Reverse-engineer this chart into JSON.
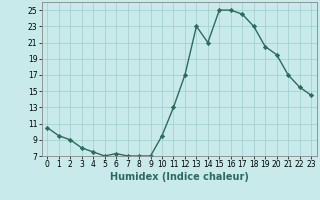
{
  "x": [
    0,
    1,
    2,
    3,
    4,
    5,
    6,
    7,
    8,
    9,
    10,
    11,
    12,
    13,
    14,
    15,
    16,
    17,
    18,
    19,
    20,
    21,
    22,
    23
  ],
  "y": [
    10.5,
    9.5,
    9.0,
    8.0,
    7.5,
    7.0,
    7.3,
    7.0,
    7.0,
    7.0,
    9.5,
    13.0,
    17.0,
    23.0,
    21.0,
    25.0,
    25.0,
    24.5,
    23.0,
    20.5,
    19.5,
    17.0,
    15.5,
    14.5
  ],
  "line_color": "#2d6b5e",
  "marker": "D",
  "marker_size": 2.2,
  "linewidth": 1.0,
  "xlabel": "Humidex (Indice chaleur)",
  "bg_color": "#c8eaea",
  "grid_color": "#a0cccc",
  "xlim": [
    -0.5,
    23.5
  ],
  "ylim": [
    7,
    26
  ],
  "yticks": [
    7,
    9,
    11,
    13,
    15,
    17,
    19,
    21,
    23,
    25
  ],
  "xticks": [
    0,
    1,
    2,
    3,
    4,
    5,
    6,
    7,
    8,
    9,
    10,
    11,
    12,
    13,
    14,
    15,
    16,
    17,
    18,
    19,
    20,
    21,
    22,
    23
  ],
  "tick_fontsize": 5.5,
  "xlabel_fontsize": 7.0,
  "xlabel_bold": true
}
